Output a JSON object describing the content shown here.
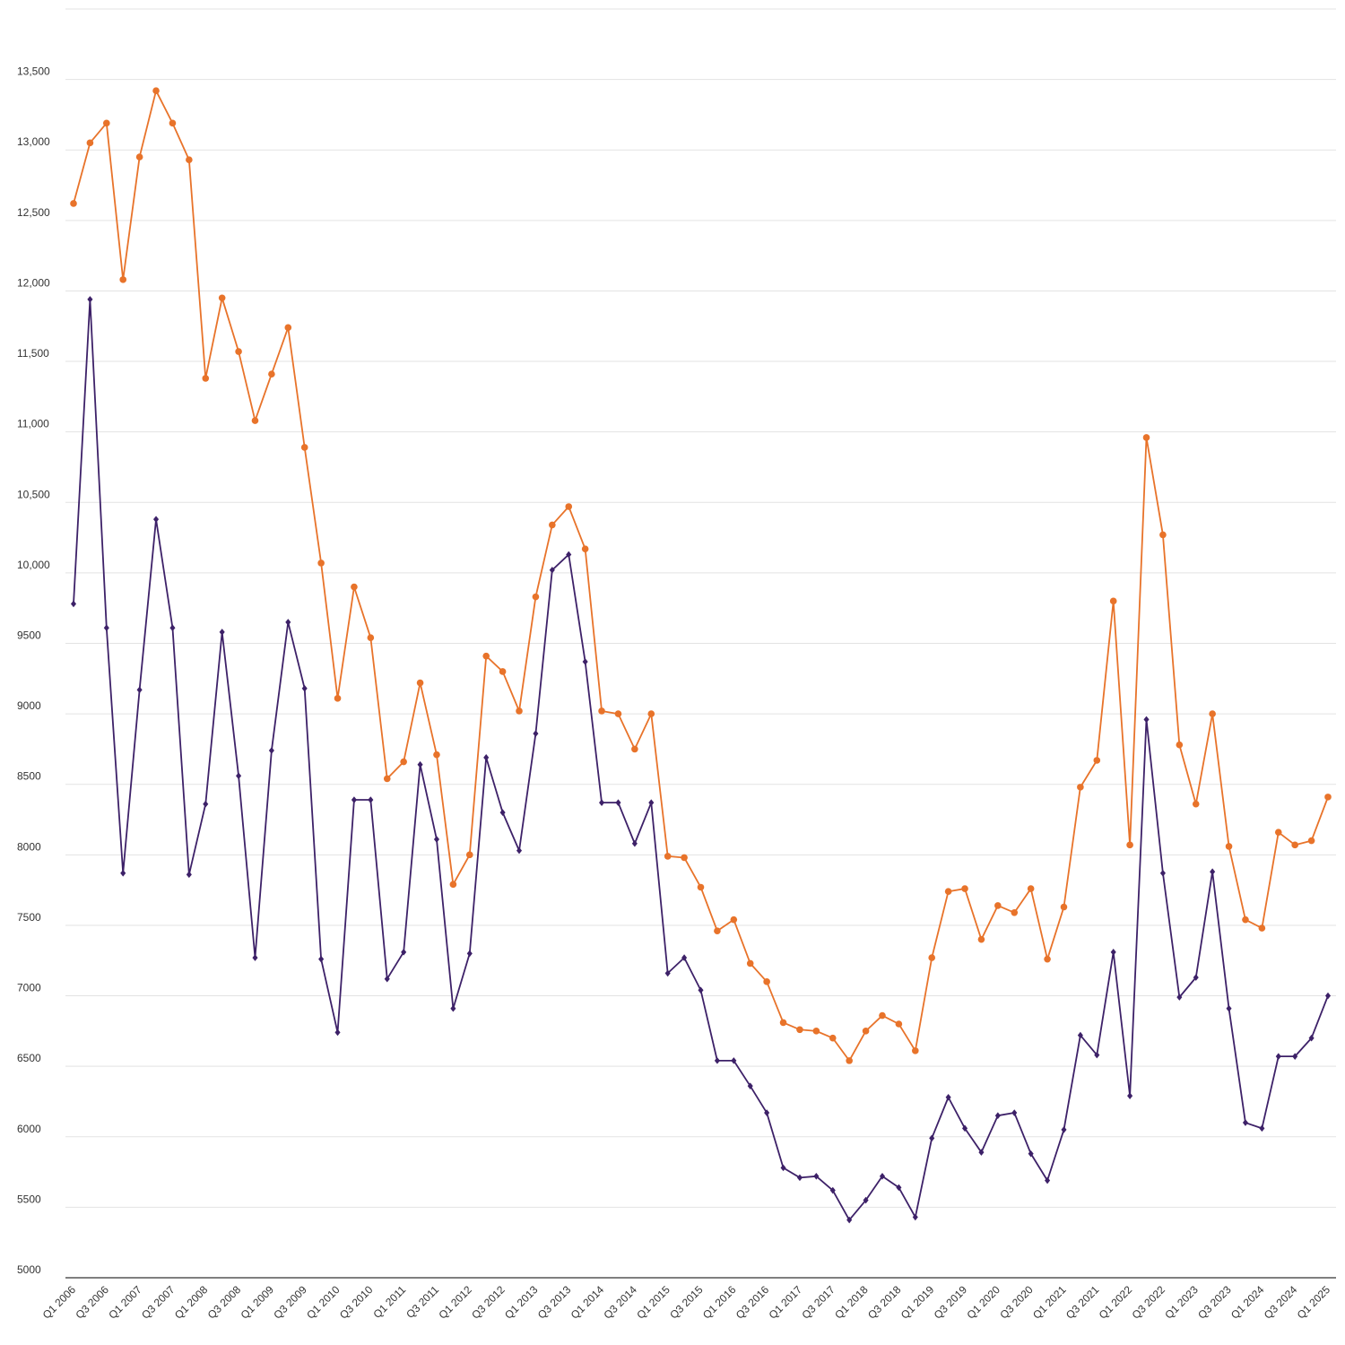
{
  "chart_data": {
    "type": "line",
    "title": "",
    "xlabel": "",
    "ylabel": "",
    "ylim": [
      5000,
      14000
    ],
    "grid": true,
    "legend": "none",
    "y_ticks": [
      {
        "value": 5000,
        "label": "5000"
      },
      {
        "value": 5500,
        "label": "5500"
      },
      {
        "value": 6000,
        "label": "6000"
      },
      {
        "value": 6500,
        "label": "6500"
      },
      {
        "value": 7000,
        "label": "7000"
      },
      {
        "value": 7500,
        "label": "7500"
      },
      {
        "value": 8000,
        "label": "8000"
      },
      {
        "value": 8500,
        "label": "8500"
      },
      {
        "value": 9000,
        "label": "9000"
      },
      {
        "value": 9500,
        "label": "9500"
      },
      {
        "value": 10000,
        "label": "10,000"
      },
      {
        "value": 10500,
        "label": "10,500"
      },
      {
        "value": 11000,
        "label": "11,000"
      },
      {
        "value": 11500,
        "label": "11,500"
      },
      {
        "value": 12000,
        "label": "12,000"
      },
      {
        "value": 12500,
        "label": "12,500"
      },
      {
        "value": 13000,
        "label": "13,000"
      },
      {
        "value": 13500,
        "label": "13,500"
      }
    ],
    "x": [
      "Q1 2006",
      "Q2 2006",
      "Q3 2006",
      "Q4 2006",
      "Q1 2007",
      "Q2 2007",
      "Q3 2007",
      "Q4 2007",
      "Q1 2008",
      "Q2 2008",
      "Q3 2008",
      "Q4 2008",
      "Q1 2009",
      "Q2 2009",
      "Q3 2009",
      "Q4 2009",
      "Q1 2010",
      "Q2 2010",
      "Q3 2010",
      "Q4 2010",
      "Q1 2011",
      "Q2 2011",
      "Q3 2011",
      "Q4 2011",
      "Q1 2012",
      "Q2 2012",
      "Q3 2012",
      "Q4 2012",
      "Q1 2013",
      "Q2 2013",
      "Q3 2013",
      "Q4 2013",
      "Q1 2014",
      "Q2 2014",
      "Q3 2014",
      "Q4 2014",
      "Q1 2015",
      "Q2 2015",
      "Q3 2015",
      "Q4 2015",
      "Q1 2016",
      "Q2 2016",
      "Q3 2016",
      "Q4 2016",
      "Q1 2017",
      "Q2 2017",
      "Q3 2017",
      "Q4 2017",
      "Q1 2018",
      "Q2 2018",
      "Q3 2018",
      "Q4 2018",
      "Q1 2019",
      "Q2 2019",
      "Q3 2019",
      "Q4 2019",
      "Q1 2020",
      "Q2 2020",
      "Q3 2020",
      "Q4 2020",
      "Q1 2021",
      "Q2 2021",
      "Q3 2021",
      "Q4 2021",
      "Q1 2022",
      "Q2 2022",
      "Q3 2022",
      "Q4 2022",
      "Q1 2023",
      "Q2 2023",
      "Q3 2023",
      "Q4 2023",
      "Q1 2024",
      "Q2 2024",
      "Q3 2024",
      "Q4 2024",
      "Q1 2025"
    ],
    "x_tick_labels": [
      "Q1 2006",
      "Q3 2006",
      "Q1 2007",
      "Q3 2007",
      "Q1 2008",
      "Q3 2008",
      "Q1 2009",
      "Q3 2009",
      "Q1 2010",
      "Q3 2010",
      "Q1 2011",
      "Q3 2011",
      "Q1 2012",
      "Q3 2012",
      "Q1 2013",
      "Q3 2013",
      "Q1 2014",
      "Q3 2014",
      "Q1 2015",
      "Q3 2015",
      "Q1 2016",
      "Q3 2016",
      "Q1 2017",
      "Q3 2017",
      "Q1 2018",
      "Q3 2018",
      "Q1 2019",
      "Q3 2019",
      "Q1 2020",
      "Q3 2020",
      "Q1 2021",
      "Q3 2021",
      "Q1 2022",
      "Q3 2022",
      "Q1 2023",
      "Q3 2023",
      "Q1 2024",
      "Q3 2024",
      "Q1 2025"
    ],
    "series": [
      {
        "color": "#e8732a",
        "marker": "circle",
        "values": [
          12620,
          13050,
          13190,
          12080,
          12950,
          13420,
          13190,
          12930,
          11380,
          11950,
          11570,
          11080,
          11410,
          11740,
          10890,
          10070,
          9110,
          9900,
          9540,
          8540,
          8660,
          9220,
          8710,
          7790,
          8000,
          9410,
          9300,
          9020,
          9830,
          10340,
          10470,
          10170,
          9020,
          9000,
          8750,
          9000,
          7990,
          7980,
          7770,
          7460,
          7540,
          7230,
          7100,
          6810,
          6760,
          6750,
          6700,
          6540,
          6750,
          6860,
          6800,
          6610,
          7270,
          7740,
          7760,
          7400,
          7640,
          7590,
          7760,
          7260,
          7630,
          8480,
          8670,
          9800,
          8070,
          10960,
          10270,
          8780,
          8360,
          9000,
          8060,
          7540,
          7480,
          8160,
          8070,
          8100,
          8410
        ]
      },
      {
        "color": "#3d2168",
        "marker": "diamond",
        "values": [
          9780,
          11940,
          9610,
          7870,
          9170,
          10380,
          9610,
          7860,
          8360,
          9580,
          8560,
          7270,
          8740,
          9650,
          9180,
          7260,
          6740,
          8390,
          8390,
          7120,
          7310,
          8640,
          8110,
          6910,
          7300,
          8690,
          8300,
          8030,
          8860,
          10020,
          10130,
          9370,
          8370,
          8370,
          8080,
          8370,
          7160,
          7270,
          7040,
          6540,
          6540,
          6360,
          6170,
          5780,
          5710,
          5720,
          5620,
          5410,
          5550,
          5720,
          5640,
          5430,
          5990,
          6280,
          6060,
          5890,
          6150,
          6170,
          5880,
          5690,
          6050,
          6720,
          6580,
          7310,
          6290,
          8960,
          7870,
          6990,
          7130,
          7880,
          6910,
          6100,
          6060,
          6570,
          6570,
          6700,
          7000
        ]
      }
    ]
  }
}
